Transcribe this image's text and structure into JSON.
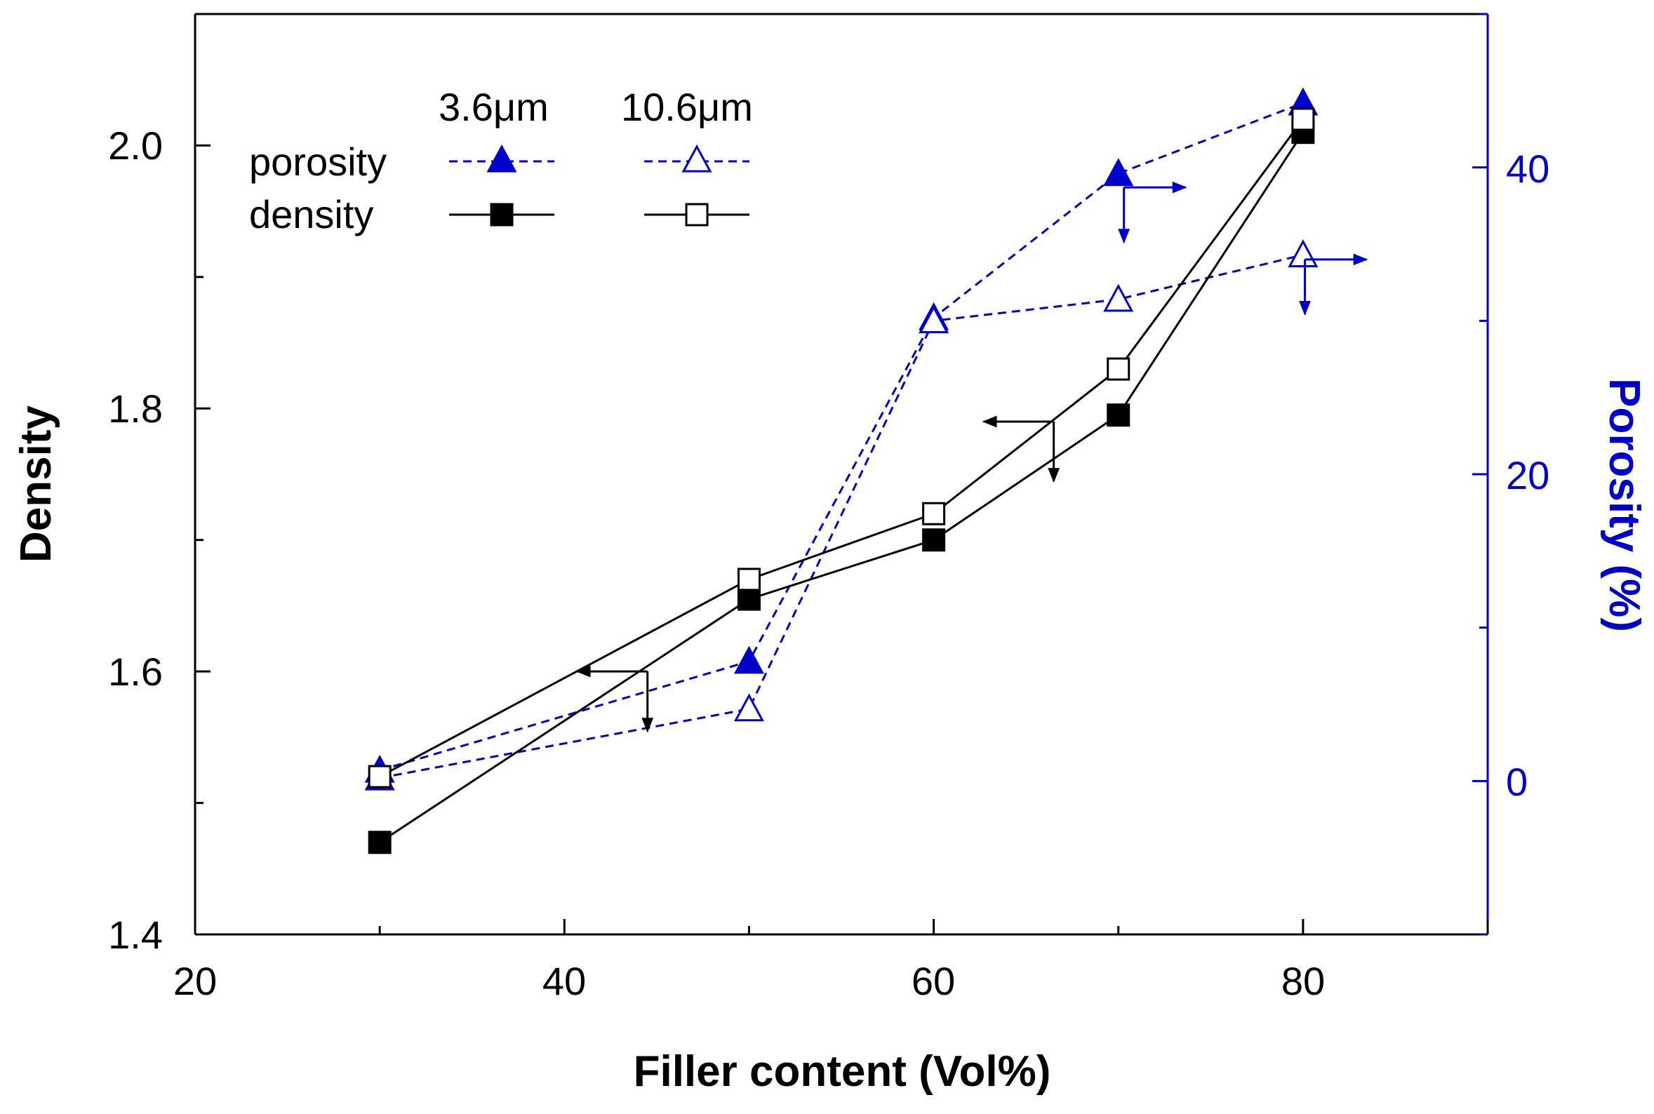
{
  "chart_data": {
    "type": "line",
    "title": "",
    "xlabel": "Filler content (Vol%)",
    "ylabel": "Density",
    "y2label": "Porosity (%)",
    "xlim": [
      20,
      90
    ],
    "ylim": [
      1.4,
      2.1
    ],
    "y2lim": [
      -10,
      50
    ],
    "xticks": [
      "20",
      "40",
      "60",
      "80"
    ],
    "yticks": [
      "1.4",
      "1.6",
      "1.8",
      "2.0"
    ],
    "y2ticks": [
      "0",
      "20",
      "40"
    ],
    "colors": {
      "density": "#000000",
      "porosity": "#0000cc"
    },
    "legend": {
      "col1": "3.6μm",
      "col2": "10.6μm",
      "row1": "porosity",
      "row2": "density"
    },
    "series": [
      {
        "name": "density 3.6μm",
        "axis": "left",
        "marker": "filled-square",
        "line": "solid",
        "x": [
          30,
          50,
          60,
          70,
          80
        ],
        "values": [
          1.47,
          1.655,
          1.7,
          1.795,
          2.01
        ]
      },
      {
        "name": "density 10.6μm",
        "axis": "left",
        "marker": "open-square",
        "line": "solid",
        "x": [
          30,
          50,
          60,
          70,
          80
        ],
        "values": [
          1.52,
          1.67,
          1.72,
          1.83,
          2.02
        ]
      },
      {
        "name": "porosity 3.6μm",
        "axis": "right",
        "marker": "filled-triangle",
        "line": "dashed",
        "x": [
          30,
          50,
          60,
          70,
          80
        ],
        "values": [
          0.7,
          7.8,
          30.2,
          39.6,
          44.2
        ]
      },
      {
        "name": "porosity 10.6μm",
        "axis": "right",
        "marker": "open-triangle",
        "line": "dashed",
        "x": [
          30,
          50,
          60,
          70,
          80
        ],
        "values": [
          0.2,
          4.7,
          30.0,
          31.4,
          34.3
        ]
      }
    ],
    "annotations": [
      {
        "type": "axis-indicator",
        "target_axis": "left",
        "color": "black",
        "at_x": 44.5,
        "at_density": 1.6
      },
      {
        "type": "axis-indicator",
        "target_axis": "left",
        "color": "black",
        "at_x": 66.5,
        "at_density": 1.79
      },
      {
        "type": "axis-indicator",
        "target_axis": "right",
        "color": "blue",
        "at_x": 70.3,
        "at_porosity": 38.7
      },
      {
        "type": "axis-indicator",
        "target_axis": "right",
        "color": "blue",
        "at_x": 80.1,
        "at_porosity": 34.0
      }
    ]
  }
}
